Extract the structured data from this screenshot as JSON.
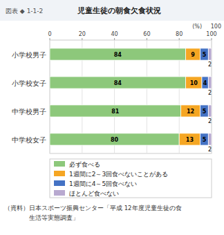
{
  "chart_data": {
    "type": "bar",
    "orientation": "horizontal",
    "stacked": true,
    "title": "児童生徒の朝食欠食状況",
    "subtitle": "図表 ◆ 1-1-2",
    "x_label": "(%)",
    "categories": [
      "小学校男子",
      "小学校女子",
      "中学校男子",
      "中学校女子"
    ],
    "series": [
      {
        "name": "必ず食べる",
        "values": [
          84,
          84,
          81,
          80
        ],
        "color": "#8dc87b"
      },
      {
        "name": "1週間に2～3回食べないことがある",
        "values": [
          9,
          10,
          12,
          13
        ],
        "color": "#f5a623"
      },
      {
        "name": "1週間に4～5回食べない",
        "values": [
          5,
          4,
          5,
          5
        ],
        "color": "#4472c4"
      },
      {
        "name": "ほとんど食べない",
        "values": [
          2,
          2,
          2,
          2
        ],
        "color": "#b8a9d0"
      }
    ],
    "xlim": [
      0,
      100
    ],
    "xticks": [
      0,
      20,
      40,
      60,
      80,
      100
    ],
    "grid": true,
    "data_labels": true,
    "legend": "bottom",
    "annotations": [
      "100",
      "（資料）日本スポーツ振興センター「平成 12年度児童生徒の食",
      "　　　　生活等実態調査」"
    ]
  }
}
